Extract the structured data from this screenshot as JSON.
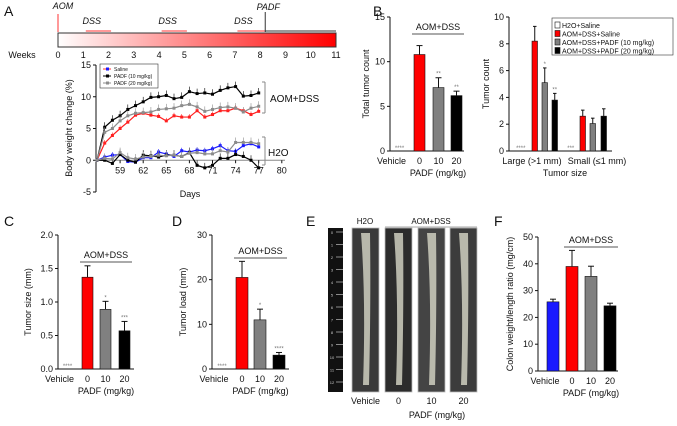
{
  "panel_labels": [
    "A",
    "B",
    "C",
    "D",
    "E",
    "F"
  ],
  "chart_data": [
    {
      "id": "A-timeline",
      "type": "timeline",
      "axis_label": "Weeks",
      "ticks": [
        "0",
        "1",
        "2",
        "3",
        "4",
        "5",
        "6",
        "7",
        "8",
        "9",
        "10",
        "11"
      ],
      "events": [
        {
          "label": "AOM",
          "week": 0
        },
        {
          "label": "PADF",
          "week": 8.2
        }
      ],
      "dss_periods": [
        {
          "label": "DSS",
          "start": 1.1,
          "end": 2.1
        },
        {
          "label": "DSS",
          "start": 4.1,
          "end": 5.1
        },
        {
          "label": "DSS",
          "start": 7.1,
          "end": 8.2
        }
      ],
      "colors": {
        "start": "#ffffff",
        "end": "#ff0000"
      }
    },
    {
      "id": "A",
      "type": "line",
      "xlabel": "Days",
      "ylabel": "Body weight change (%)",
      "xlim": [
        56,
        80
      ],
      "ylim": [
        -5,
        15
      ],
      "xticks": [
        "59",
        "62",
        "65",
        "68",
        "71",
        "74",
        "77",
        "80"
      ],
      "yticks": [
        "-5",
        "0",
        "5",
        "10",
        "15"
      ],
      "x": [
        56,
        57,
        58,
        59,
        60,
        61,
        62,
        63,
        64,
        65,
        66,
        67,
        68,
        69,
        70,
        71,
        72,
        73,
        74,
        75,
        76,
        77
      ],
      "legend": [
        "Saline",
        "PADF (10 mg/kg)",
        "PADF (20 mg/kg)"
      ],
      "group_labels": [
        "AOM+DSS",
        "H2O"
      ],
      "series": [
        {
          "name": "AOM+DSS Saline",
          "color": "#ff2020",
          "values": [
            0,
            2.7,
            3.9,
            5,
            6,
            7.1,
            7.4,
            7.1,
            6.9,
            6.2,
            7,
            6.8,
            6.8,
            7.8,
            6.8,
            7.2,
            7.8,
            7.8,
            8.2,
            7.8,
            7.2,
            7.7
          ]
        },
        {
          "name": "AOM+DSS PADF (10 mg/kg)",
          "color": "#000000",
          "values": [
            0,
            5.2,
            6.3,
            7,
            8,
            8.6,
            9.2,
            9.9,
            10,
            10.2,
            9.7,
            9.9,
            10.8,
            10.5,
            10.6,
            10.4,
            11,
            11.4,
            11.6,
            10.1,
            10.2,
            10.6
          ]
        },
        {
          "name": "AOM+DSS PADF (20 mg/kg)",
          "color": "#8c8c8c",
          "values": [
            0,
            4.4,
            5,
            6.2,
            7,
            7.4,
            7.5,
            7.6,
            8,
            8.1,
            8.2,
            8.6,
            8.8,
            8.4,
            7.7,
            8,
            8.3,
            8.4,
            8.2,
            7.6,
            8.2,
            8.5
          ]
        },
        {
          "name": "H2O Saline",
          "color": "#1a1aff",
          "values": [
            0,
            0.5,
            0.8,
            0.9,
            -0.2,
            -0.3,
            0.4,
            0.4,
            1.3,
            1,
            0.6,
            1.5,
            1.3,
            1.6,
            1.5,
            1.8,
            2.3,
            1.5,
            1.4,
            2.3,
            2.6,
            2.1
          ]
        },
        {
          "name": "H2O PADF (10 mg/kg)",
          "color": "#000000",
          "values": [
            0,
            0,
            -0.5,
            0.9,
            0,
            -0.3,
            0.8,
            0.7,
            0.5,
            0.8,
            0.8,
            0.6,
            1.2,
            -0.8,
            -1.2,
            -0.8,
            0.3,
            0.3,
            0.9,
            0.6,
            0,
            -1.2
          ]
        },
        {
          "name": "H2O PADF (20 mg/kg)",
          "color": "#8c8c8c",
          "values": [
            0,
            0.3,
            0.2,
            1.2,
            0.4,
            0.2,
            0.5,
            0.6,
            0.8,
            0.7,
            0.8,
            0.6,
            1.1,
            1.2,
            1,
            1,
            1.5,
            1.3,
            2.8,
            2.8,
            2.8,
            2.6
          ]
        }
      ]
    },
    {
      "id": "B-left",
      "type": "bar",
      "ylabel": "Total tumor count",
      "xlabel": "PADF (mg/kg)",
      "ylim": [
        0,
        15
      ],
      "yticks": [
        "0",
        "5",
        "10",
        "15"
      ],
      "categories": [
        "Vehicle",
        "0",
        "10",
        "20"
      ],
      "values": [
        0,
        10.8,
        7.1,
        6.2
      ],
      "errors": [
        0,
        1,
        1.1,
        0.5
      ],
      "significance": [
        "****",
        "",
        "**",
        "**"
      ],
      "colors": [
        "#ffffff",
        "#ff0000",
        "#808080",
        "#000000"
      ],
      "bracket_label": "AOM+DSS"
    },
    {
      "id": "B-right",
      "type": "bar",
      "ylabel": "Tumor count",
      "xlabel": "Tumor size",
      "ylim": [
        0,
        10
      ],
      "yticks": [
        "0",
        "2",
        "4",
        "6",
        "8",
        "10"
      ],
      "categories": [
        "Large (>1 mm)",
        "Small (≤1 mm)"
      ],
      "legend": [
        "H2O+Saline",
        "AOM+DSS+Saline",
        "AOM+DSS+PADF (10 mg/kg)",
        "AOM+DSS+PADF (20 mg/kg)"
      ],
      "series": [
        {
          "name": "H2O+Saline",
          "color": "#ffffff",
          "values": [
            0,
            0
          ],
          "errors": [
            0,
            0
          ],
          "significance": [
            "****",
            "***"
          ]
        },
        {
          "name": "AOM+DSS+Saline",
          "color": "#ff0000",
          "values": [
            8.2,
            2.6
          ],
          "errors": [
            1.1,
            0.45
          ],
          "significance": [
            "",
            ""
          ]
        },
        {
          "name": "AOM+DSS+PADF (10 mg/kg)",
          "color": "#808080",
          "values": [
            5.1,
            2.05
          ],
          "errors": [
            1.1,
            0.4
          ],
          "significance": [
            "*",
            ""
          ]
        },
        {
          "name": "AOM+DSS+PADF (20 mg/kg)",
          "color": "#000000",
          "values": [
            3.8,
            2.6
          ],
          "errors": [
            0.5,
            0.55
          ],
          "significance": [
            "**",
            ""
          ]
        }
      ]
    },
    {
      "id": "C",
      "type": "bar",
      "ylabel": "Tumor size (mm)",
      "xlabel": "PADF (mg/kg)",
      "ylim": [
        0,
        2
      ],
      "yticks": [
        "0.0",
        "0.5",
        "1.0",
        "1.5",
        "2.0"
      ],
      "categories": [
        "Vehicle",
        "0",
        "10",
        "20"
      ],
      "values": [
        0,
        1.37,
        0.89,
        0.57
      ],
      "errors": [
        0,
        0.17,
        0.12,
        0.14
      ],
      "significance": [
        "****",
        "",
        "*",
        "***"
      ],
      "colors": [
        "#ffffff",
        "#ff0000",
        "#808080",
        "#000000"
      ],
      "bracket_label": "AOM+DSS"
    },
    {
      "id": "D",
      "type": "bar",
      "ylabel": "Tumor load (mm)",
      "xlabel": "PADF (mg/kg)",
      "ylim": [
        0,
        30
      ],
      "yticks": [
        "0",
        "10",
        "20",
        "30"
      ],
      "categories": [
        "Vehicle",
        "0",
        "10",
        "20"
      ],
      "values": [
        0,
        20.5,
        11,
        3.1
      ],
      "errors": [
        0,
        3.6,
        2.4,
        0.6
      ],
      "significance": [
        "****",
        "",
        "*",
        "****"
      ],
      "colors": [
        "#ffffff",
        "#ff0000",
        "#808080",
        "#000000"
      ],
      "bracket_label": "AOM+DSS"
    },
    {
      "id": "F",
      "type": "bar",
      "ylabel": "Colon weight/length ratio (mg/cm)",
      "xlabel": "PADF (mg/kg)",
      "ylim": [
        0,
        50
      ],
      "yticks": [
        "0",
        "10",
        "20",
        "30",
        "40",
        "50"
      ],
      "categories": [
        "Vehicle",
        "0",
        "10",
        "20"
      ],
      "values": [
        25.8,
        39,
        35.3,
        24.3
      ],
      "errors": [
        1,
        6,
        3.8,
        1
      ],
      "significance": [
        "",
        "",
        "",
        ""
      ],
      "colors": [
        "#1a1aff",
        "#ff0000",
        "#808080",
        "#000000"
      ],
      "bracket_label": "AOM+DSS"
    }
  ],
  "panel_E": {
    "group_labels": [
      "H2O",
      "AOM+DSS"
    ],
    "categories": [
      "Vehicle",
      "0",
      "10",
      "20"
    ],
    "xlabel": "PADF (mg/kg)",
    "ruler_ticks": [
      "0",
      "1",
      "2",
      "3",
      "4",
      "5",
      "6",
      "7",
      "8",
      "9",
      "10",
      "11",
      "12"
    ]
  }
}
